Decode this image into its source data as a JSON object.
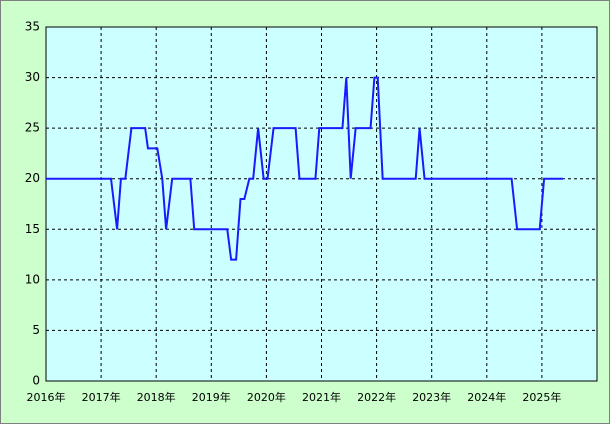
{
  "chart_data": {
    "type": "line",
    "x": [
      2016.0,
      2017.18,
      2017.29,
      2017.36,
      2017.44,
      2017.55,
      2017.8,
      2017.85,
      2018.02,
      2018.11,
      2018.18,
      2018.29,
      2018.62,
      2018.69,
      2019.29,
      2019.36,
      2019.45,
      2019.53,
      2019.6,
      2019.69,
      2019.76,
      2019.85,
      2019.95,
      2020.02,
      2020.13,
      2020.53,
      2020.6,
      2020.89,
      2020.96,
      2021.38,
      2021.45,
      2021.53,
      2021.62,
      2021.89,
      2021.96,
      2022.02,
      2022.11,
      2022.71,
      2022.78,
      2022.87,
      2024.45,
      2024.55,
      2024.96,
      2025.04,
      2025.38
    ],
    "series": [
      {
        "color": "#1a1aff",
        "values": [
          20,
          20,
          15,
          20,
          20,
          25,
          25,
          23,
          23,
          20,
          15,
          20,
          20,
          15,
          15,
          12,
          12,
          18,
          18,
          20,
          20,
          25,
          20,
          20,
          25,
          25,
          20,
          20,
          25,
          25,
          30,
          20,
          25,
          25,
          30,
          30,
          20,
          20,
          25,
          20,
          20,
          15,
          15,
          20,
          20
        ]
      }
    ],
    "xlim": [
      2016,
      2026
    ],
    "xticks": [
      {
        "value": 2016,
        "label": "2016年"
      },
      {
        "value": 2017,
        "label": "2017年"
      },
      {
        "value": 2018,
        "label": "2018年"
      },
      {
        "value": 2019,
        "label": "2019年"
      },
      {
        "value": 2020,
        "label": "2020年"
      },
      {
        "value": 2021,
        "label": "2021年"
      },
      {
        "value": 2022,
        "label": "2022年"
      },
      {
        "value": 2023,
        "label": "2023年"
      },
      {
        "value": 2024,
        "label": "2024年"
      },
      {
        "value": 2025,
        "label": "2025年"
      }
    ],
    "ylim": [
      0,
      35
    ],
    "yticks": [
      0,
      5,
      10,
      15,
      20,
      25,
      30,
      35
    ],
    "grid": true
  }
}
